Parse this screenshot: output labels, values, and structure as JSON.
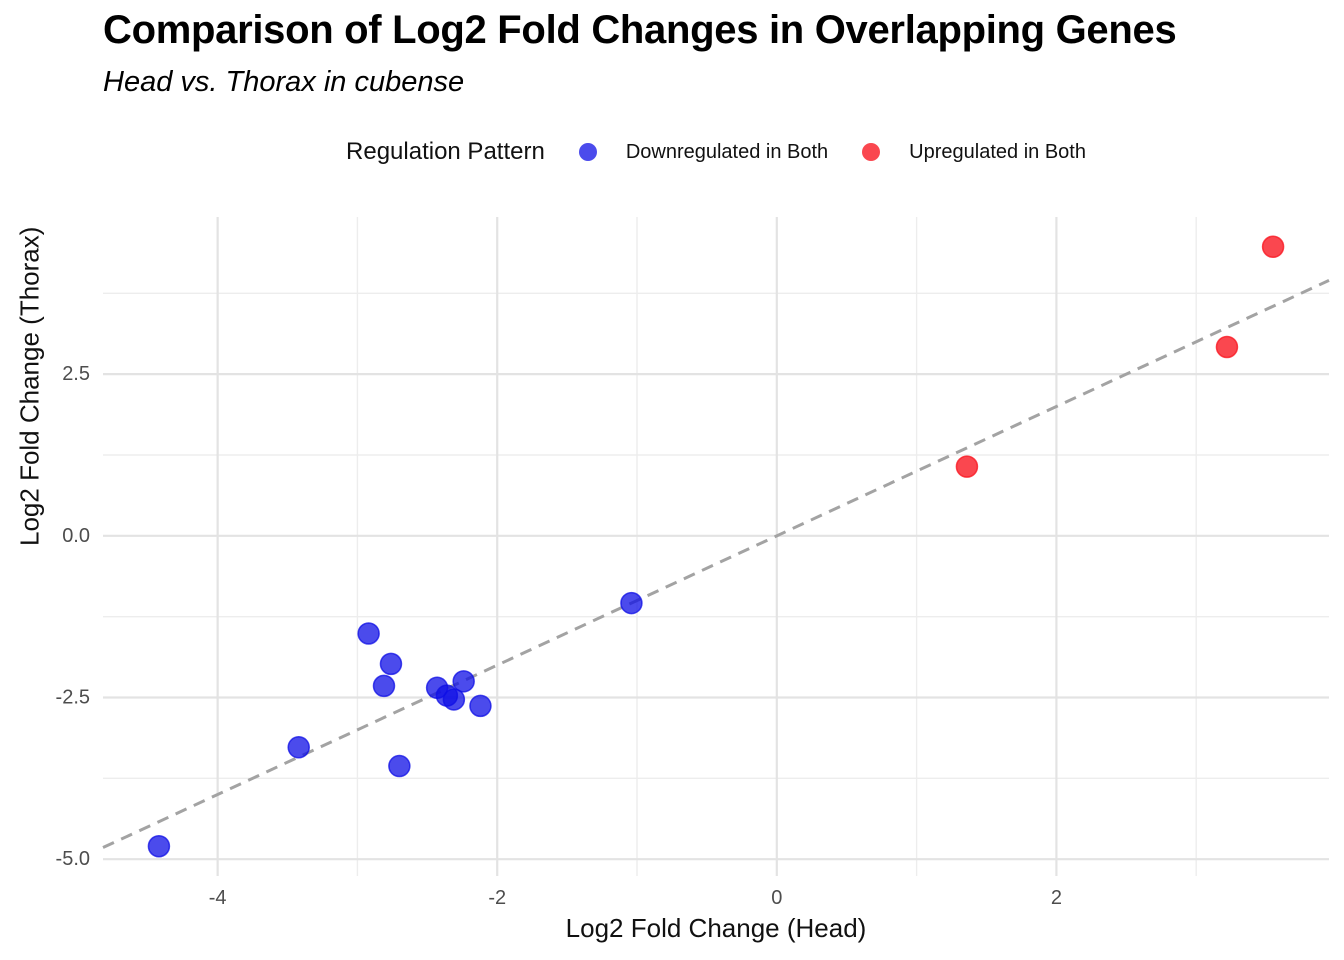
{
  "header": {
    "title": "Comparison of Log2 Fold Changes in Overlapping Genes",
    "subtitle": "Head vs. Thorax in cubense"
  },
  "legend": {
    "title": "Regulation Pattern",
    "items": [
      {
        "label": "Downregulated in Both",
        "color": "rgba(15,15,229,0.75)"
      },
      {
        "label": "Upregulated in Both",
        "color": "rgba(249,25,35,0.8)"
      }
    ]
  },
  "axes": {
    "x_label": "Log2 Fold Change (Head)",
    "y_label": "Log2 Fold Change (Thorax)"
  },
  "chart_data": {
    "type": "scatter",
    "title": "Comparison of Log2 Fold Changes in Overlapping Genes",
    "subtitle": "Head vs. Thorax in cubense",
    "xlabel": "Log2 Fold Change (Head)",
    "ylabel": "Log2 Fold Change (Thorax)",
    "xlim": [
      -4.82,
      3.95
    ],
    "ylim": [
      -5.26,
      4.93
    ],
    "x_major_ticks": [
      -4,
      -2,
      0,
      2
    ],
    "x_tick_labels": [
      "-4",
      "-2",
      "0",
      "2"
    ],
    "x_minor_ticks": [
      -3,
      -1,
      1,
      3
    ],
    "y_major_ticks": [
      2.5,
      0,
      -2.5,
      -5
    ],
    "y_tick_labels": [
      "2.5",
      "0.0",
      "-2.5",
      "-5.0"
    ],
    "y_minor_ticks": [
      3.75,
      1.25,
      -1.25,
      -3.75
    ],
    "grid": true,
    "legend_position": "top",
    "legend_title": "Regulation Pattern",
    "reference_line": {
      "slope": 1,
      "intercept": 0,
      "style": "dashed",
      "color": "#a3a3a3"
    },
    "point_radius": 10.5,
    "series": [
      {
        "name": "Downregulated in Both",
        "color": "rgba(15,15,229,0.75)",
        "points": [
          [
            -4.42,
            -4.8
          ],
          [
            -3.42,
            -3.27
          ],
          [
            -2.92,
            -1.51
          ],
          [
            -2.81,
            -2.32
          ],
          [
            -2.76,
            -1.98
          ],
          [
            -2.7,
            -3.56
          ],
          [
            -2.43,
            -2.35
          ],
          [
            -2.36,
            -2.47
          ],
          [
            -2.31,
            -2.53
          ],
          [
            -2.24,
            -2.25
          ],
          [
            -2.12,
            -2.63
          ],
          [
            -1.04,
            -1.04
          ]
        ]
      },
      {
        "name": "Upregulated in Both",
        "color": "rgba(249,25,35,0.8)",
        "points": [
          [
            1.36,
            1.07
          ],
          [
            3.22,
            2.92
          ],
          [
            3.55,
            4.47
          ]
        ]
      }
    ]
  }
}
